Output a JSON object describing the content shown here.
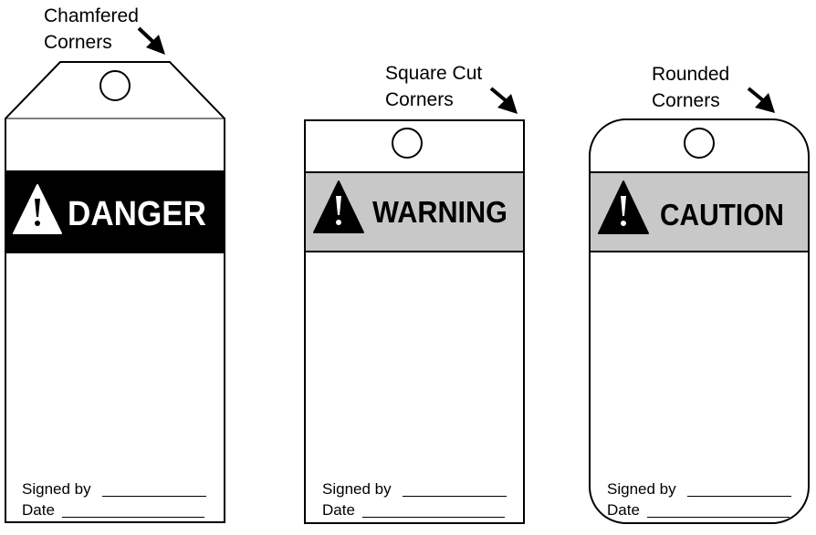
{
  "tags": [
    {
      "style": "chamfered",
      "callout": [
        "Chamfered",
        "Corners"
      ],
      "header": "DANGER",
      "header_bg": "#000000",
      "header_fg": "#ffffff",
      "icon_fill": "#ffffff",
      "icon_mark": "#000000",
      "signed_label": "Signed by",
      "date_label": "Date"
    },
    {
      "style": "square",
      "callout": [
        "Square Cut",
        "Corners"
      ],
      "header": "WARNING",
      "header_bg": "#c8c8c8",
      "header_fg": "#000000",
      "icon_fill": "#000000",
      "icon_mark": "#ffffff",
      "signed_label": "Signed by",
      "date_label": "Date"
    },
    {
      "style": "rounded",
      "callout": [
        "Rounded",
        "Corners"
      ],
      "header": "CAUTION",
      "header_bg": "#c8c8c8",
      "header_fg": "#000000",
      "icon_fill": "#000000",
      "icon_mark": "#ffffff",
      "signed_label": "Signed by",
      "date_label": "Date"
    }
  ]
}
